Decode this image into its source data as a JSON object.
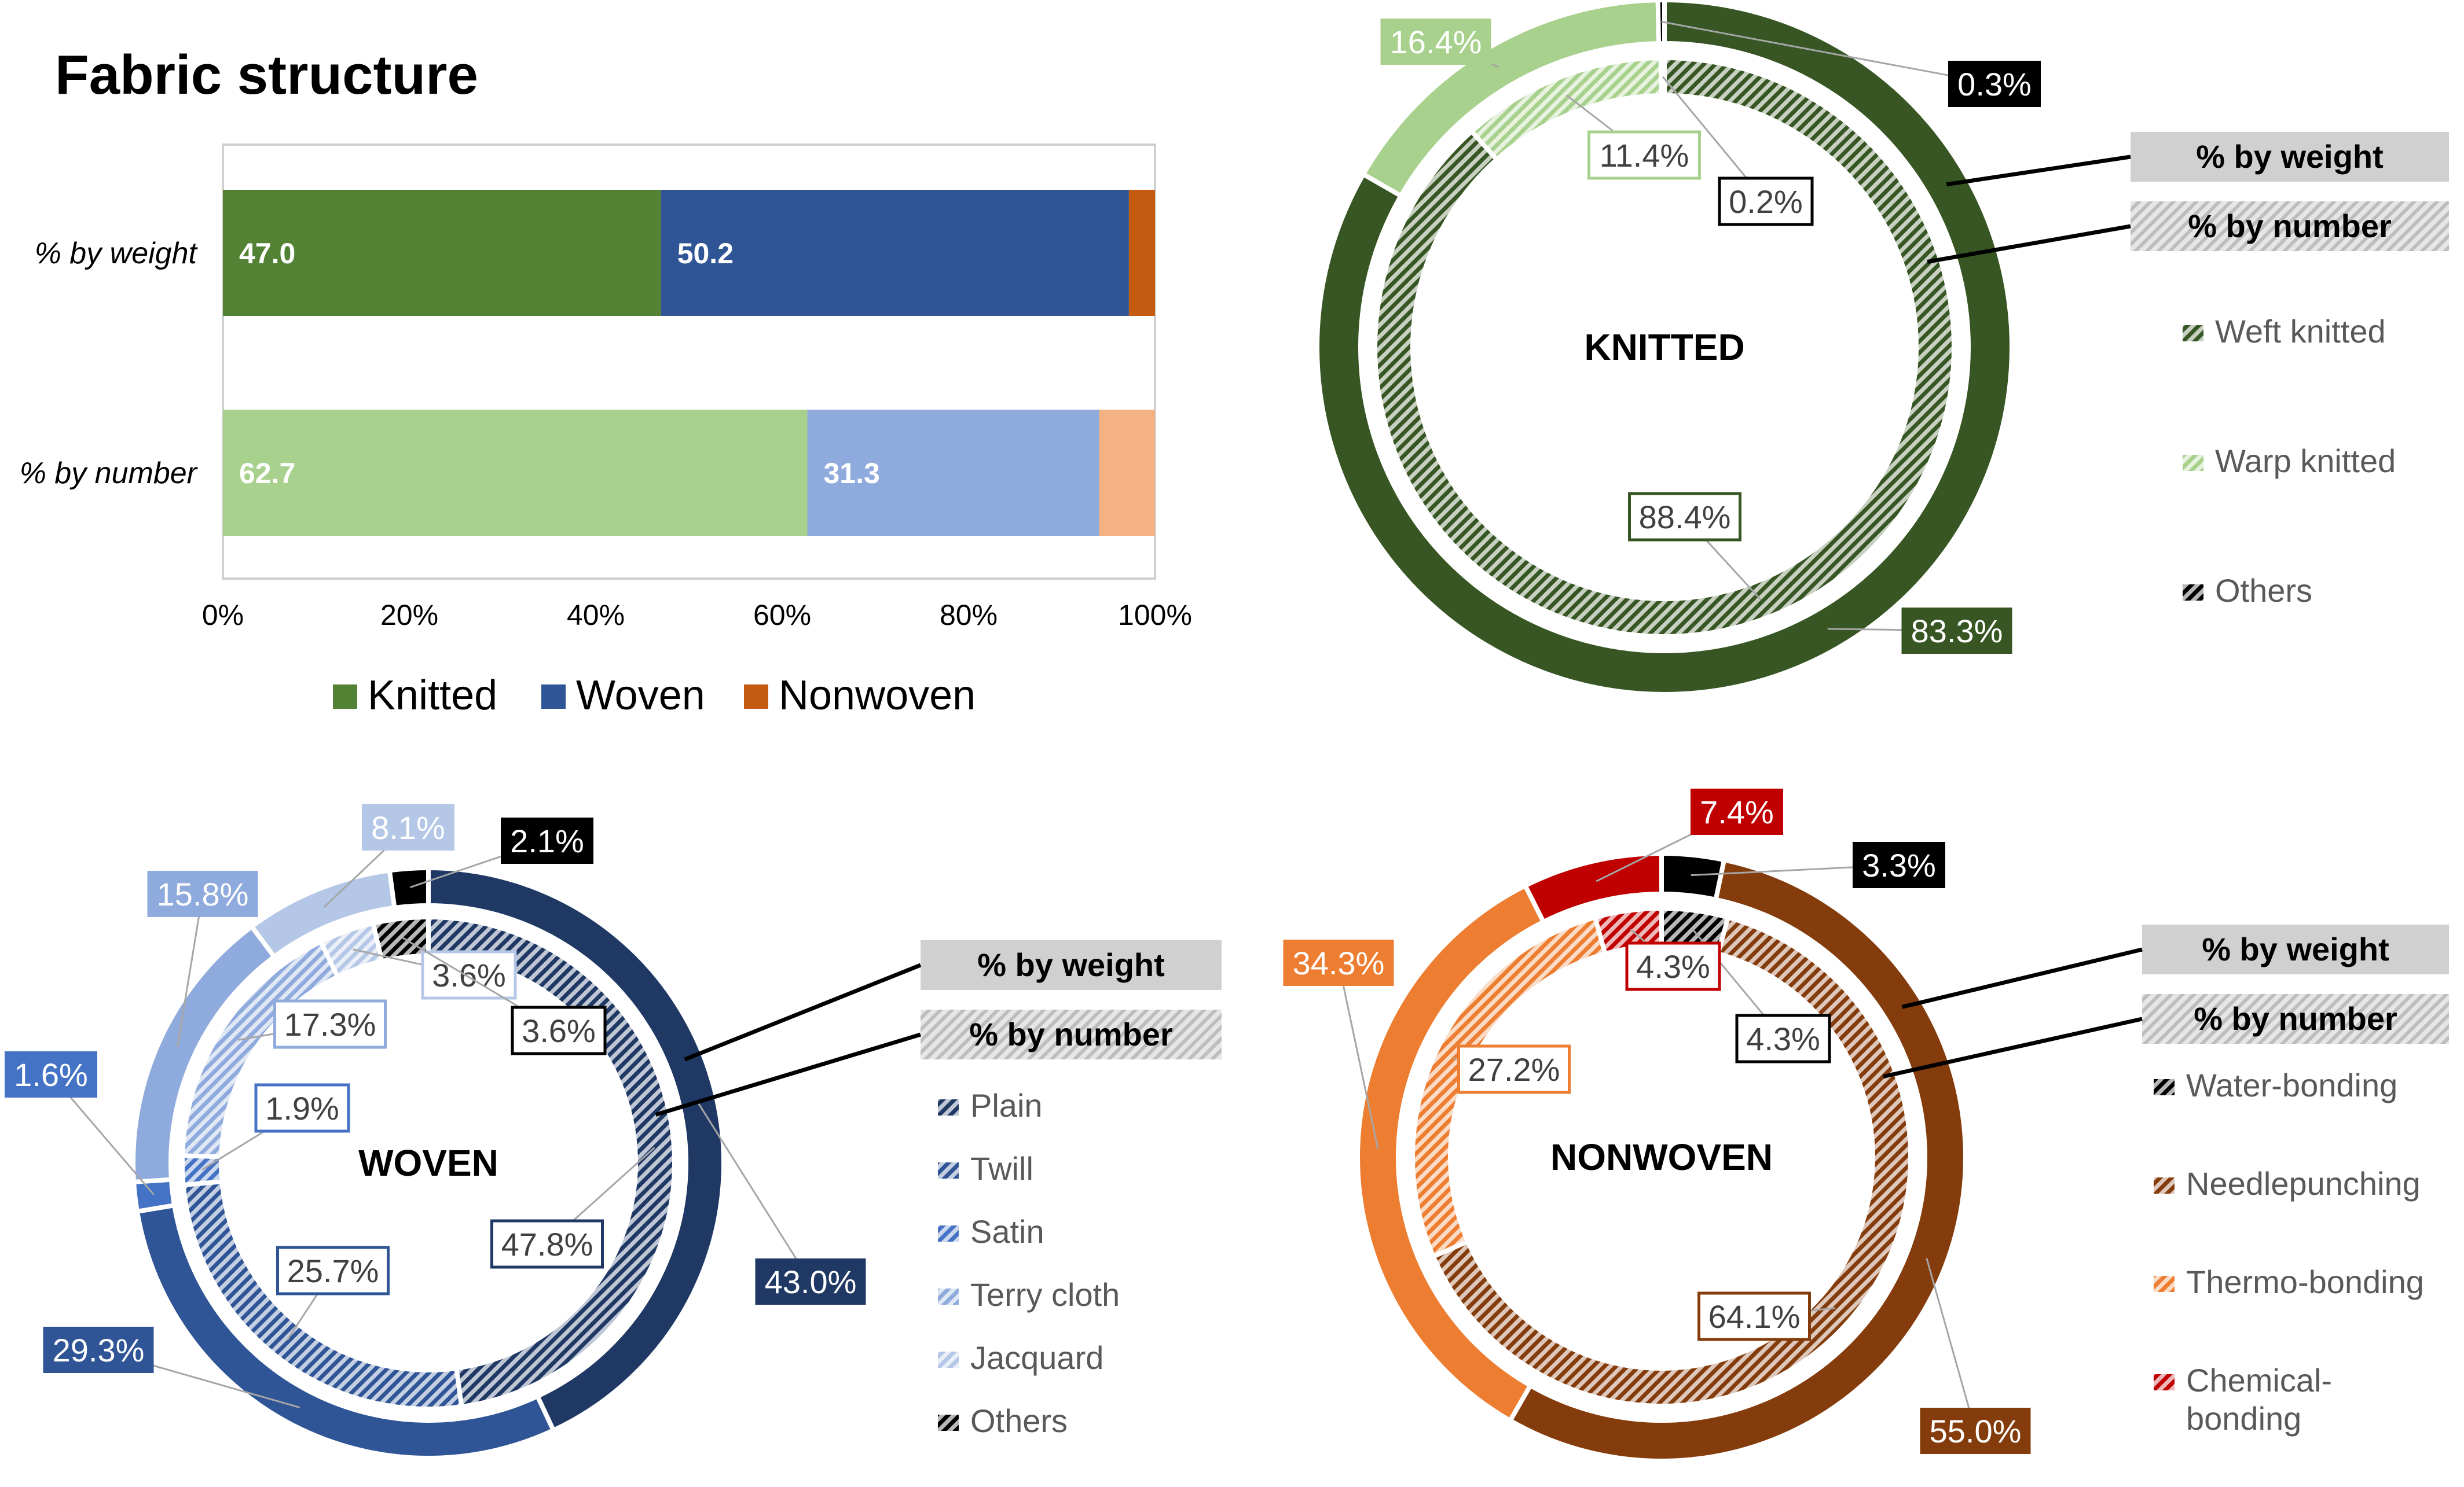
{
  "chart_data": [
    {
      "type": "bar",
      "orientation": "horizontal-stacked",
      "title": "Fabric structure",
      "categories": [
        "% by weight",
        "% by number"
      ],
      "series": [
        {
          "name": "Knitted",
          "values": [
            47.0,
            62.7
          ],
          "colors": [
            "#548235",
            "#a9d18e"
          ]
        },
        {
          "name": "Woven",
          "values": [
            50.2,
            31.3
          ],
          "colors": [
            "#2f5597",
            "#8faadc"
          ]
        },
        {
          "name": "Nonwoven",
          "values": [
            2.8,
            6.0
          ],
          "colors": [
            "#c55a11",
            "#f4b183"
          ]
        }
      ],
      "data_labels": [
        [
          "47.0",
          "50.2",
          ""
        ],
        [
          "62.7",
          "31.3",
          ""
        ]
      ],
      "xlim": [
        0,
        100
      ],
      "x_ticks": [
        "0%",
        "20%",
        "40%",
        "60%",
        "80%",
        "100%"
      ],
      "legend": [
        {
          "label": "Knitted",
          "color": "#548235"
        },
        {
          "label": "Woven",
          "color": "#2f5597"
        },
        {
          "label": "Nonwoven",
          "color": "#c55a11"
        }
      ],
      "legend_position": "bottom"
    },
    {
      "type": "pie",
      "variant": "double-doughnut",
      "center_label": "KNITTED",
      "ring_labels": {
        "outer": "% by weight",
        "inner": "% by number"
      },
      "categories": [
        "Weft knitted",
        "Warp knitted",
        "Others"
      ],
      "colors": [
        "#375623",
        "#a9d18e",
        "#000000"
      ],
      "outer_values": [
        83.3,
        16.4,
        0.3
      ],
      "inner_values": [
        88.4,
        11.4,
        0.2
      ],
      "outer_labels": [
        "83.3%",
        "16.4%",
        "0.3%"
      ],
      "inner_labels": [
        "88.4%",
        "11.4%",
        "0.2%"
      ],
      "legend_position": "right"
    },
    {
      "type": "pie",
      "variant": "double-doughnut",
      "center_label": "WOVEN",
      "ring_labels": {
        "outer": "% by weight",
        "inner": "% by number"
      },
      "categories": [
        "Plain",
        "Twill",
        "Satin",
        "Terry cloth",
        "Jacquard",
        "Others"
      ],
      "colors": [
        "#1f3864",
        "#2f5597",
        "#4472c4",
        "#8faadc",
        "#b4c7e7",
        "#000000"
      ],
      "outer_values": [
        43.0,
        29.3,
        1.6,
        15.8,
        8.1,
        2.1
      ],
      "inner_values": [
        47.8,
        25.7,
        1.9,
        17.3,
        3.6,
        3.6
      ],
      "outer_labels": [
        "43.0%",
        "29.3%",
        "1.6%",
        "15.8%",
        "8.1%",
        "2.1%"
      ],
      "inner_labels": [
        "47.8%",
        "25.7%",
        "1.9%",
        "17.3%",
        "3.6%",
        "3.6%"
      ],
      "legend_position": "right"
    },
    {
      "type": "pie",
      "variant": "double-doughnut",
      "center_label": "NONWOVEN",
      "ring_labels": {
        "outer": "% by weight",
        "inner": "% by number"
      },
      "categories": [
        "Water-bonding",
        "Needlepunching",
        "Thermo-bonding",
        "Chemical-bonding"
      ],
      "legend_lines": [
        [
          "Water-bonding"
        ],
        [
          "Needlepunching"
        ],
        [
          "Thermo-bonding"
        ],
        [
          "Chemical-",
          "bonding"
        ]
      ],
      "colors": [
        "#000000",
        "#843c0c",
        "#ed7d31",
        "#c00000"
      ],
      "outer_values": [
        3.3,
        55.0,
        34.3,
        7.4
      ],
      "inner_values": [
        4.3,
        64.1,
        27.2,
        4.3
      ],
      "outer_labels": [
        "3.3%",
        "55.0%",
        "34.3%",
        "7.4%"
      ],
      "inner_labels": [
        "4.3%",
        "64.1%",
        "27.2%",
        "4.3%"
      ],
      "legend_position": "right"
    }
  ]
}
